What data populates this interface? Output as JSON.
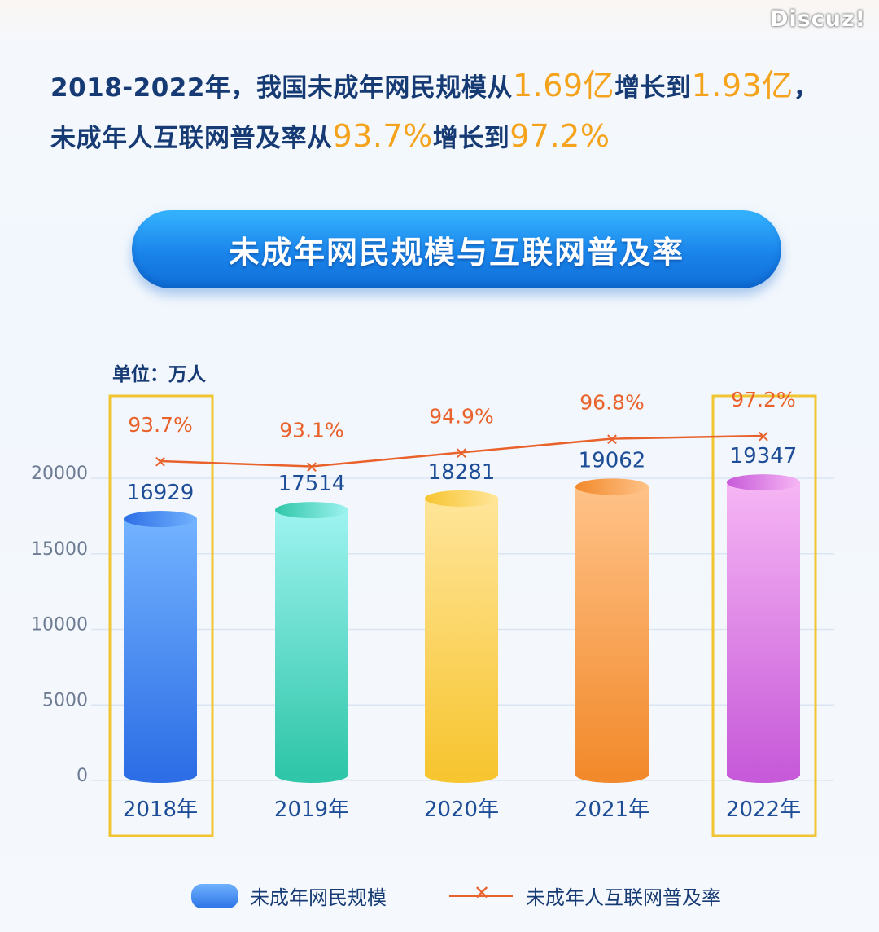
{
  "watermark": "Discuz!",
  "headline": {
    "line1_prefix": "2018-2022年，我国未成年网民规模从",
    "line1_value_start": "1.69亿",
    "line1_middle": "增长到",
    "line1_value_end": "1.93亿",
    "line1_suffix": "，",
    "line2_prefix": "未成年人互联网普及率从",
    "line2_value_start": "93.7%",
    "line2_middle": "增长到",
    "line2_value_end": "97.2%"
  },
  "colors": {
    "accent": "#f5a31c",
    "line": "#e9622b",
    "highlight_box": "#f0c531",
    "bar_2018": [
      "#73b3ff",
      "#2d6ee6"
    ],
    "bar_2019": [
      "#9ef3f0",
      "#2fc6a9"
    ],
    "bar_2020": [
      "#ffe59a",
      "#f7c530"
    ],
    "bar_2021": [
      "#ffc288",
      "#f28a2c"
    ],
    "bar_2022": [
      "#f6b6f4",
      "#c75ad9"
    ]
  },
  "chart_data": {
    "type": "bar",
    "title": "未成年网民规模与互联网普及率",
    "unit": "单位：万人",
    "categories": [
      "2018年",
      "2019年",
      "2020年",
      "2021年",
      "2022年"
    ],
    "yticks": [
      "0",
      "5000",
      "10000",
      "15000",
      "20000"
    ],
    "ylim": [
      0,
      20000
    ],
    "series": [
      {
        "name": "未成年网民规模",
        "type": "bar",
        "values": [
          16929,
          17514,
          18281,
          19062,
          19347
        ]
      },
      {
        "name": "未成年人互联网普及率",
        "type": "line",
        "values": [
          93.7,
          93.1,
          94.9,
          96.8,
          97.2
        ],
        "labels": [
          "93.7%",
          "93.1%",
          "94.9%",
          "96.8%",
          "97.2%"
        ]
      }
    ],
    "highlighted_categories": [
      "2018年",
      "2022年"
    ],
    "legend": {
      "placement": "bottom",
      "bar_label": "未成年网民规模",
      "line_label": "未成年人互联网普及率"
    },
    "grid": true
  }
}
